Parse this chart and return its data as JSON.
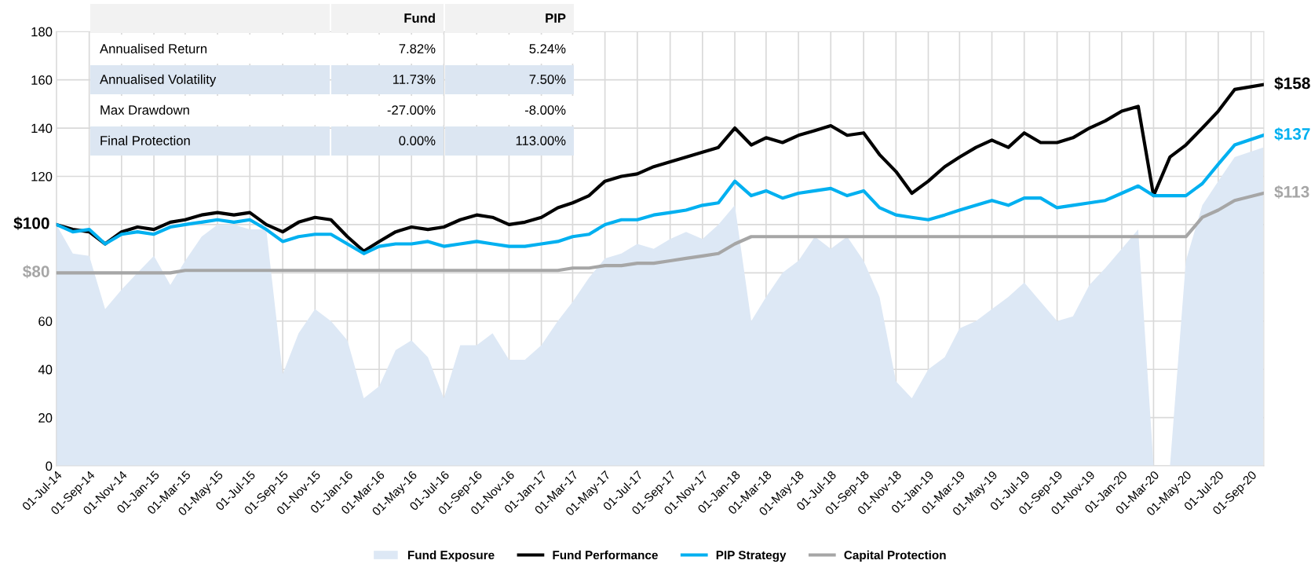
{
  "chart_data": {
    "type": "line",
    "x": [
      "2014-07-01",
      "2014-08-01",
      "2014-09-01",
      "2014-10-01",
      "2014-11-01",
      "2014-12-01",
      "2015-01-01",
      "2015-02-01",
      "2015-03-01",
      "2015-04-01",
      "2015-05-01",
      "2015-06-01",
      "2015-07-01",
      "2015-08-01",
      "2015-09-01",
      "2015-10-01",
      "2015-11-01",
      "2015-12-01",
      "2016-01-01",
      "2016-02-01",
      "2016-03-01",
      "2016-04-01",
      "2016-05-01",
      "2016-06-01",
      "2016-07-01",
      "2016-08-01",
      "2016-09-01",
      "2016-10-01",
      "2016-11-01",
      "2016-12-01",
      "2017-01-01",
      "2017-02-01",
      "2017-03-01",
      "2017-04-01",
      "2017-05-01",
      "2017-06-01",
      "2017-07-01",
      "2017-08-01",
      "2017-09-01",
      "2017-10-01",
      "2017-11-01",
      "2017-12-01",
      "2018-01-01",
      "2018-02-01",
      "2018-03-01",
      "2018-04-01",
      "2018-05-01",
      "2018-06-01",
      "2018-07-01",
      "2018-08-01",
      "2018-09-01",
      "2018-10-01",
      "2018-11-01",
      "2018-12-01",
      "2019-01-01",
      "2019-02-01",
      "2019-03-01",
      "2019-04-01",
      "2019-05-01",
      "2019-06-01",
      "2019-07-01",
      "2019-08-01",
      "2019-09-01",
      "2019-10-01",
      "2019-11-01",
      "2019-12-01",
      "2020-01-01",
      "2020-02-01",
      "2020-03-01",
      "2020-04-01",
      "2020-05-01",
      "2020-06-01",
      "2020-07-01",
      "2020-08-01",
      "2020-09-24"
    ],
    "series": [
      {
        "name": "Fund Exposure",
        "type": "area",
        "color": "#dde8f5",
        "values": [
          100,
          88,
          87,
          65,
          73,
          80,
          87,
          75,
          85,
          95,
          100,
          100,
          98,
          98,
          38,
          55,
          65,
          60,
          52,
          28,
          33,
          48,
          52,
          45,
          28,
          50,
          50,
          55,
          44,
          44,
          50,
          60,
          68,
          78,
          86,
          88,
          92,
          90,
          94,
          97,
          94,
          100,
          108,
          60,
          70,
          80,
          85,
          95,
          90,
          95,
          85,
          70,
          35,
          28,
          40,
          45,
          57,
          60,
          65,
          70,
          76,
          68,
          60,
          62,
          75,
          82,
          90,
          98,
          0,
          0,
          85,
          108,
          118,
          128,
          132
        ]
      },
      {
        "name": "Fund Performance",
        "color": "#000000",
        "values": [
          100,
          98,
          97,
          92,
          97,
          99,
          98,
          101,
          102,
          104,
          105,
          104,
          105,
          100,
          97,
          101,
          103,
          102,
          95,
          89,
          93,
          97,
          99,
          98,
          99,
          102,
          104,
          103,
          100,
          101,
          103,
          107,
          109,
          112,
          118,
          120,
          121,
          124,
          126,
          128,
          130,
          132,
          140,
          133,
          136,
          134,
          137,
          139,
          141,
          137,
          138,
          129,
          122,
          113,
          118,
          124,
          128,
          132,
          135,
          132,
          138,
          134,
          134,
          136,
          140,
          143,
          147,
          149,
          112,
          128,
          133,
          140,
          147,
          156,
          158
        ]
      },
      {
        "name": "PIP Strategy",
        "color": "#00b0f0",
        "values": [
          100,
          97,
          98,
          92,
          96,
          97,
          96,
          99,
          100,
          101,
          102,
          101,
          102,
          98,
          93,
          95,
          96,
          96,
          92,
          88,
          91,
          92,
          92,
          93,
          91,
          92,
          93,
          92,
          91,
          91,
          92,
          93,
          95,
          96,
          100,
          102,
          102,
          104,
          105,
          106,
          108,
          109,
          118,
          112,
          114,
          111,
          113,
          114,
          115,
          112,
          114,
          107,
          104,
          103,
          102,
          104,
          106,
          108,
          110,
          108,
          111,
          111,
          107,
          108,
          109,
          110,
          113,
          116,
          112,
          112,
          112,
          117,
          125,
          133,
          137
        ]
      },
      {
        "name": "Capital Protection",
        "color": "#a6a6a6",
        "values": [
          80,
          80,
          80,
          80,
          80,
          80,
          80,
          80,
          81,
          81,
          81,
          81,
          81,
          81,
          81,
          81,
          81,
          81,
          81,
          81,
          81,
          81,
          81,
          81,
          81,
          81,
          81,
          81,
          81,
          81,
          81,
          81,
          82,
          82,
          83,
          83,
          84,
          84,
          85,
          86,
          87,
          88,
          92,
          95,
          95,
          95,
          95,
          95,
          95,
          95,
          95,
          95,
          95,
          95,
          95,
          95,
          95,
          95,
          95,
          95,
          95,
          95,
          95,
          95,
          95,
          95,
          95,
          95,
          95,
          95,
          95,
          103,
          106,
          110,
          113
        ]
      }
    ],
    "xlim": [
      "2014-07-01",
      "2020-09-25"
    ],
    "xticks": [
      {
        "value": "2014-07-01",
        "label": "01-Jul-14"
      },
      {
        "value": "2014-09-01",
        "label": "01-Sep-14"
      },
      {
        "value": "2014-11-01",
        "label": "01-Nov-14"
      },
      {
        "value": "2015-01-01",
        "label": "01-Jan-15"
      },
      {
        "value": "2015-03-01",
        "label": "01-Mar-15"
      },
      {
        "value": "2015-05-01",
        "label": "01-May-15"
      },
      {
        "value": "2015-07-01",
        "label": "01-Jul-15"
      },
      {
        "value": "2015-09-01",
        "label": "01-Sep-15"
      },
      {
        "value": "2015-11-01",
        "label": "01-Nov-15"
      },
      {
        "value": "2016-01-01",
        "label": "01-Jan-16"
      },
      {
        "value": "2016-03-01",
        "label": "01-Mar-16"
      },
      {
        "value": "2016-05-01",
        "label": "01-May-16"
      },
      {
        "value": "2016-07-01",
        "label": "01-Jul-16"
      },
      {
        "value": "2016-09-01",
        "label": "01-Sep-16"
      },
      {
        "value": "2016-11-01",
        "label": "01-Nov-16"
      },
      {
        "value": "2017-01-01",
        "label": "01-Jan-17"
      },
      {
        "value": "2017-03-01",
        "label": "01-Mar-17"
      },
      {
        "value": "2017-05-01",
        "label": "01-May-17"
      },
      {
        "value": "2017-07-01",
        "label": "01-Jul-17"
      },
      {
        "value": "2017-09-01",
        "label": "01-Sep-17"
      },
      {
        "value": "2017-11-01",
        "label": "01-Nov-17"
      },
      {
        "value": "2018-01-01",
        "label": "01-Jan-18"
      },
      {
        "value": "2018-03-01",
        "label": "01-Mar-18"
      },
      {
        "value": "2018-05-01",
        "label": "01-May-18"
      },
      {
        "value": "2018-07-01",
        "label": "01-Jul-18"
      },
      {
        "value": "2018-09-01",
        "label": "01-Sep-18"
      },
      {
        "value": "2018-11-01",
        "label": "01-Nov-18"
      },
      {
        "value": "2019-01-01",
        "label": "01-Jan-19"
      },
      {
        "value": "2019-03-01",
        "label": "01-Mar-19"
      },
      {
        "value": "2019-05-01",
        "label": "01-May-19"
      },
      {
        "value": "2019-07-01",
        "label": "01-Jul-19"
      },
      {
        "value": "2019-09-01",
        "label": "01-Sep-19"
      },
      {
        "value": "2019-11-01",
        "label": "01-Nov-19"
      },
      {
        "value": "2020-01-01",
        "label": "01-Jan-20"
      },
      {
        "value": "2020-03-01",
        "label": "01-Mar-20"
      },
      {
        "value": "2020-05-01",
        "label": "01-May-20"
      },
      {
        "value": "2020-07-01",
        "label": "01-Jul-20"
      },
      {
        "value": "2020-09-01",
        "label": "01-Sep-20"
      }
    ],
    "ylim": [
      0,
      180
    ],
    "yticks": [
      0,
      20,
      40,
      60,
      {
        "value": 80,
        "label": null
      },
      {
        "value": 100,
        "label": null
      },
      120,
      140,
      160,
      180
    ],
    "grid": true,
    "legend": "bottom",
    "line_style": "solid",
    "marker": "none",
    "annotations": [
      {
        "text": "$158",
        "x": "2020-09-24",
        "y": 158
      },
      {
        "text": "$137",
        "x": "2020-09-24",
        "y": 137
      },
      {
        "text": "$113",
        "x": "2020-09-24",
        "y": 113
      },
      {
        "text": "$100",
        "x": "2014-07-01",
        "y": 100
      },
      {
        "text": "$80",
        "x": "2014-07-01",
        "y": 80
      },
      "Fund",
      "PIP",
      "Annualised Return",
      "7.82%",
      "5.24%",
      "Annualised Volatility",
      "11.73%",
      "7.50%",
      "Max Drawdown",
      "-27.00%",
      "-8.00%",
      "Final Protection",
      "0.00%",
      "113.00%"
    ]
  }
}
